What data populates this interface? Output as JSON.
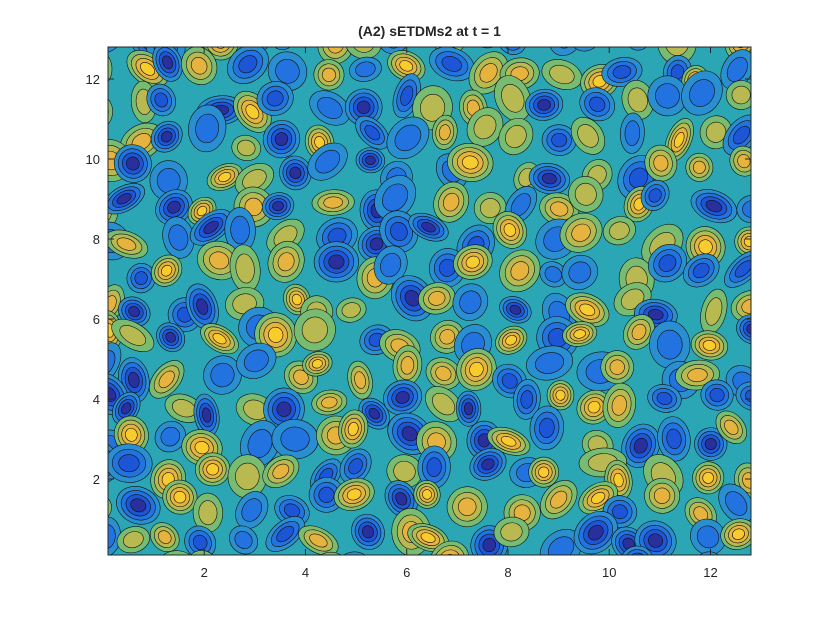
{
  "chart_data": {
    "type": "contour",
    "title": "(A2) sETDMs2 at t = 1",
    "xlim": [
      0.1,
      12.8
    ],
    "ylim": [
      0.1,
      12.8
    ],
    "xticks": [
      2,
      4,
      6,
      8,
      10,
      12
    ],
    "yticks": [
      2,
      4,
      6,
      8,
      10,
      12
    ]
  }
}
